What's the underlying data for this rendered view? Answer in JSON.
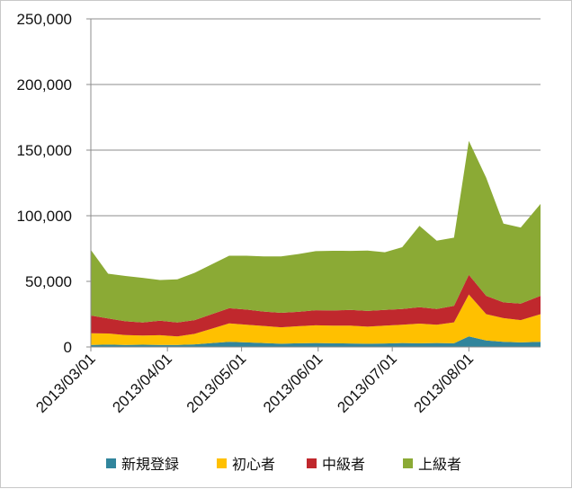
{
  "chart_data": {
    "type": "area",
    "stacked": true,
    "title": "",
    "xlabel": "",
    "ylabel": "",
    "ylim": [
      0,
      250000
    ],
    "yticks": [
      0,
      50000,
      100000,
      150000,
      200000,
      250000
    ],
    "ytick_labels": [
      "0",
      "50,000",
      "100,000",
      "150,000",
      "200,000",
      "250,000"
    ],
    "x_start": "2013/03/01",
    "x_end": "2013/08/30",
    "x_step": "weekly",
    "xtick_labels": [
      "2013/03/01",
      "2013/04/01",
      "2013/05/01",
      "2013/06/01",
      "2013/07/01",
      "2013/08/01"
    ],
    "grid": true,
    "legend_position": "bottom",
    "x": [
      "2013/03/01",
      "2013/03/08",
      "2013/03/15",
      "2013/03/22",
      "2013/03/29",
      "2013/04/05",
      "2013/04/12",
      "2013/04/19",
      "2013/04/26",
      "2013/05/03",
      "2013/05/10",
      "2013/05/17",
      "2013/05/24",
      "2013/05/31",
      "2013/06/07",
      "2013/06/14",
      "2013/06/21",
      "2013/06/28",
      "2013/07/05",
      "2013/07/12",
      "2013/07/19",
      "2013/07/26",
      "2013/08/01",
      "2013/08/08",
      "2013/08/15",
      "2013/08/22",
      "2013/08/30"
    ],
    "series": [
      {
        "name": "新規登録",
        "color": "#31859C",
        "values": [
          1500,
          1800,
          1600,
          1700,
          1500,
          1600,
          2000,
          3000,
          4000,
          3500,
          3000,
          2500,
          2800,
          3000,
          2800,
          2700,
          2500,
          2700,
          3000,
          2800,
          3000,
          2800,
          8000,
          5000,
          4000,
          3500,
          4000
        ]
      },
      {
        "name": "初心者",
        "color": "#FFC000",
        "values": [
          9000,
          8500,
          7500,
          7000,
          7500,
          6500,
          8000,
          11000,
          14000,
          13500,
          13000,
          12500,
          13000,
          13500,
          13500,
          13500,
          13000,
          13500,
          14000,
          15000,
          14000,
          16000,
          32000,
          20000,
          18000,
          17000,
          21000
        ]
      },
      {
        "name": "中級者",
        "color": "#C0282D",
        "values": [
          13500,
          11500,
          10500,
          10000,
          11000,
          10500,
          10500,
          11000,
          11500,
          11500,
          11000,
          11000,
          11000,
          11500,
          11500,
          12000,
          12000,
          12000,
          12000,
          12500,
          12000,
          12500,
          15000,
          14000,
          12000,
          12500,
          14000
        ]
      },
      {
        "name": "上級者",
        "color": "#8BAA35",
        "values": [
          50000,
          34000,
          34500,
          34000,
          31000,
          33000,
          36000,
          38000,
          40000,
          41000,
          42000,
          43000,
          44000,
          45000,
          45500,
          45000,
          46000,
          44000,
          47000,
          62000,
          52000,
          52000,
          102000,
          90000,
          60000,
          58000,
          70000
        ]
      }
    ]
  }
}
